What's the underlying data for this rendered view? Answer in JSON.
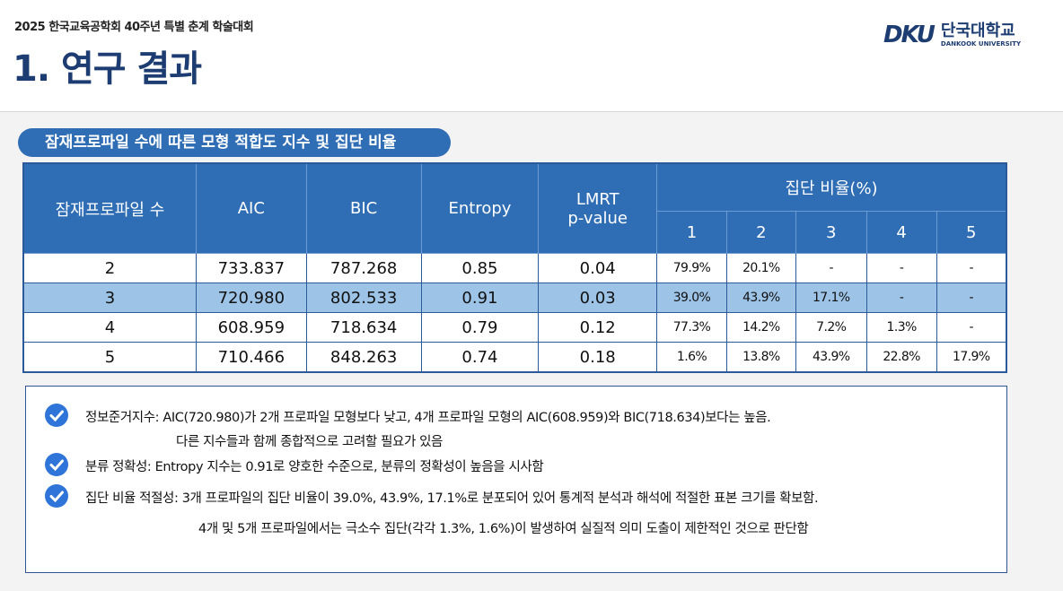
{
  "header": {
    "conference": "2025 한국교육공학회 40주년 특별 춘계 학술대회",
    "title": "1. 연구 결과",
    "logo_mark": "DKU",
    "logo_name": "단국대학교",
    "logo_sub": "DANKOOK UNIVERSITY"
  },
  "section_title": "잠재프로파일 수에 따른 모형 적합도 지수 및 집단 비율",
  "table": {
    "columns": [
      "잠재프로파일 수",
      "AIC",
      "BIC",
      "Entropy"
    ],
    "lmrt": [
      "LMRT",
      "p-value"
    ],
    "group_header": "집단 비율(%)",
    "group_columns": [
      "1",
      "2",
      "3",
      "4",
      "5"
    ],
    "rows": [
      [
        "2",
        "733.837",
        "787.268",
        "0.85",
        "0.04",
        "79.9%",
        "20.1%",
        "-",
        "-",
        "-"
      ],
      [
        "3",
        "720.980",
        "802.533",
        "0.91",
        "0.03",
        "39.0%",
        "43.9%",
        "17.1%",
        "-",
        "-"
      ],
      [
        "4",
        "608.959",
        "718.634",
        "0.79",
        "0.12",
        "77.3%",
        "14.2%",
        "7.2%",
        "1.3%",
        "-"
      ],
      [
        "5",
        "710.466",
        "848.263",
        "0.74",
        "0.18",
        "1.6%",
        "13.8%",
        "43.9%",
        "22.8%",
        "17.9%"
      ]
    ]
  },
  "notes": [
    {
      "text": "정보준거지수: AIC(720.980)가 2개 프로파일 모형보다 낮고, 4개 프로파일 모형의 AIC(608.959)와 BIC(718.634)보다는 높음.",
      "continuation": "다른 지수들과 함께 종합적으로 고려할 필요가 있음"
    },
    {
      "text": "분류 정확성: Entropy 지수는 0.91로 양호한 수준으로, 분류의 정확성이 높음을 시사함"
    },
    {
      "text": "집단 비율 적절성: 3개 프로파일의 집단 비율이 39.0%, 43.9%, 17.1%로 분포되어 있어 통계적 분석과 해석에 적절한 표본 크기를 확보함.",
      "continuation": "4개 및 5개 프로파일에서는 극소수 집단(각각 1.3%, 1.6%)이 발생하여 실질적 의미 도출이 제한적인 것으로 판단함"
    }
  ]
}
